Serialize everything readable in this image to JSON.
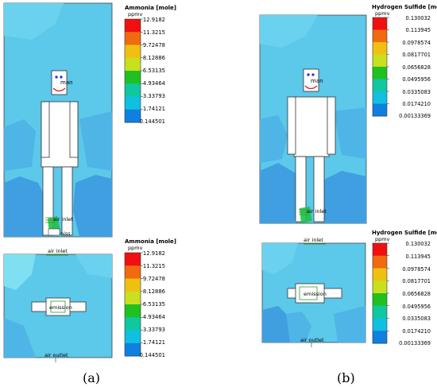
{
  "panels": {
    "a": {
      "caption": "(a)",
      "top": {
        "legend_title": "Ammonia [mole]",
        "legend_unit": "ppmv",
        "legend_values": [
          "12.9182",
          "11.3215",
          "9.72478",
          "8.12886",
          "6.53135",
          "4.93464",
          "3.33793",
          "1.74121",
          "0.144501"
        ],
        "label_man": "man",
        "label_inlet": "air inlet",
        "label_emission": "niss"
      },
      "bottom": {
        "legend_title": "Ammonia [mole]",
        "legend_unit": "ppmv",
        "legend_values": [
          "12.9182",
          "11.3215",
          "9.72478",
          "8.12886",
          "6.53135",
          "4.93464",
          "3.33793",
          "1.74121",
          "0.144501"
        ],
        "label_inlet": "air inlet",
        "label_emission": "emission",
        "label_outlet": "air outlet"
      }
    },
    "b": {
      "caption": "(b)",
      "top": {
        "legend_title": "Hydrogen Sulfide [mole]",
        "legend_unit": "ppmv",
        "legend_values": [
          "0.130032",
          "0.113945",
          "0.0978574",
          "0.0817701",
          "0.0656828",
          "0.0495956",
          "0.0335083",
          "0.0174210",
          "0.00133369"
        ],
        "label_man": "man",
        "label_inlet": "air inlet"
      },
      "bottom": {
        "legend_title": "Hydrogen Sulfide [mole]",
        "legend_unit": "ppmv",
        "legend_values": [
          "0.130032",
          "0.113945",
          "0.0978574",
          "0.0817701",
          "0.0656828",
          "0.0495956",
          "0.0335083",
          "0.0174210",
          "0.00133369"
        ],
        "label_inlet": "air inlet",
        "label_emission": "emission",
        "label_outlet": "air outlet"
      }
    }
  },
  "colors": {
    "background": "#5cc8ea",
    "deep": "#3f9fe0",
    "pale": "#7fe0f2",
    "legend_scale": [
      "#f01010",
      "#f06a10",
      "#f0c010",
      "#c8e020",
      "#20c020",
      "#10c8a0",
      "#10c0e0",
      "#1080e0",
      "#1020e0"
    ]
  }
}
